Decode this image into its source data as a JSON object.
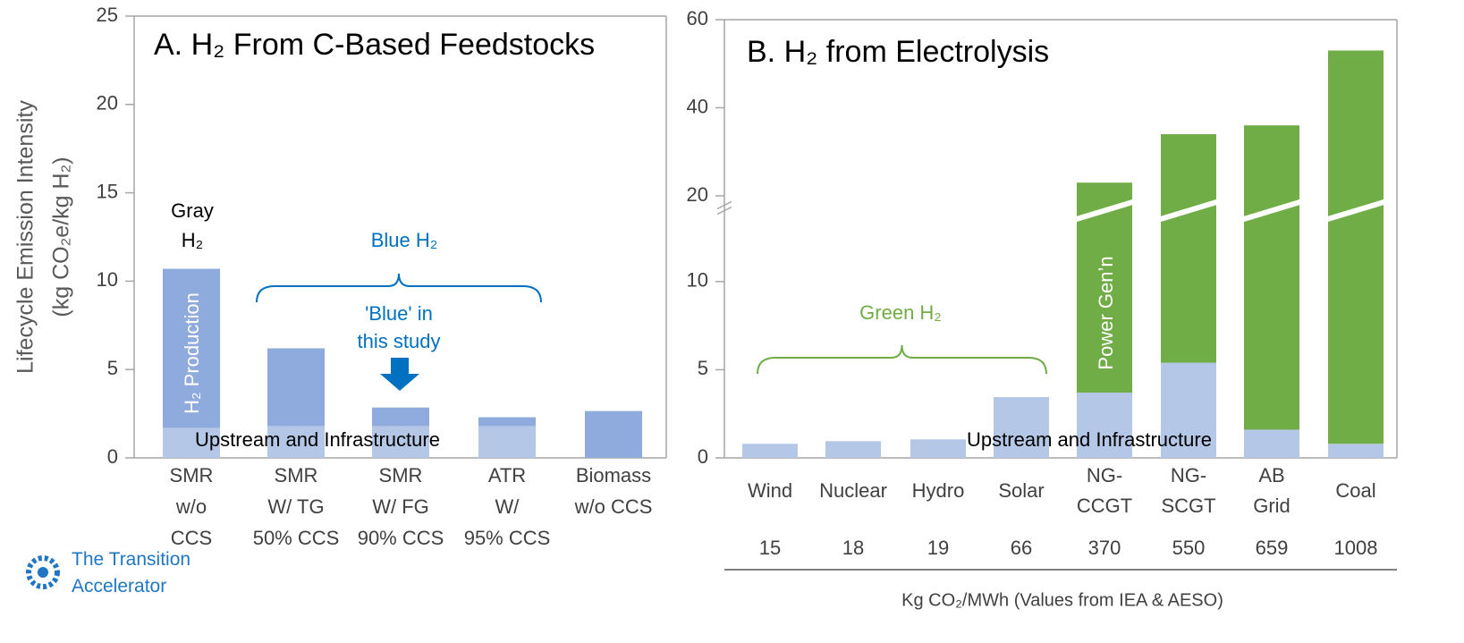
{
  "chart_data": [
    {
      "type": "bar",
      "stacked": true,
      "title": "A. H₂ From C-Based Feedstocks",
      "ylabel": [
        "Lifecycle Emission Intensity",
        "(kg CO₂e/kg H₂)"
      ],
      "categories": [
        [
          "SMR",
          "w/o",
          "CCS"
        ],
        [
          "SMR",
          "W/ TG",
          "50% CCS"
        ],
        [
          "SMR",
          "W/ FG",
          "90% CCS"
        ],
        [
          "ATR",
          "W/",
          "95% CCS"
        ],
        [
          "Biomass",
          "w/o CCS"
        ]
      ],
      "series": [
        {
          "name": "Upstream and Infrastructure",
          "color": "#b4c7e7",
          "values": [
            1.7,
            1.8,
            1.8,
            1.8,
            0
          ]
        },
        {
          "name": "H₂ Production",
          "color": "#8faadc",
          "values": [
            9.0,
            4.4,
            1.05,
            0.5,
            2.65
          ]
        }
      ],
      "ylim": [
        0,
        25
      ],
      "yticks": [
        0,
        5,
        10,
        15,
        20,
        25
      ],
      "annotations": {
        "gray": [
          "Gray",
          "H₂"
        ],
        "blue": "Blue  H₂",
        "study": [
          "'Blue' in",
          "this study"
        ]
      }
    },
    {
      "type": "bar",
      "stacked": true,
      "title": "B. H₂ from Electrolysis",
      "categories": [
        [
          "Wind"
        ],
        [
          "Nuclear"
        ],
        [
          "Hydro"
        ],
        [
          "Solar"
        ],
        [
          "NG-",
          "CCGT"
        ],
        [
          "NG-",
          "SCGT"
        ],
        [
          "AB",
          "Grid"
        ],
        [
          "Coal"
        ]
      ],
      "emission_factors": [
        15,
        18,
        19,
        66,
        370,
        550,
        659,
        1008
      ],
      "xlabel": "Kg CO₂/MWh (Values from IEA & AESO)",
      "series": [
        {
          "name": "Upstream and Infrastructure",
          "color": "#b4c7e7",
          "values": [
            0.8,
            0.95,
            1.05,
            3.45,
            3.7,
            5.4,
            1.6,
            0.8
          ]
        },
        {
          "name": "Power Gen’n",
          "color": "#70ad47",
          "values": [
            null,
            null,
            null,
            null,
            19.3,
            28.6,
            34.4,
            52.2
          ]
        }
      ],
      "ylim": [
        0,
        60
      ],
      "ybreak": [
        14,
        20
      ],
      "yticks": [
        0,
        5,
        10,
        20,
        40,
        60
      ],
      "annotations": {
        "green": "Green H₂"
      }
    }
  ],
  "logo": "The Transition Accelerator"
}
